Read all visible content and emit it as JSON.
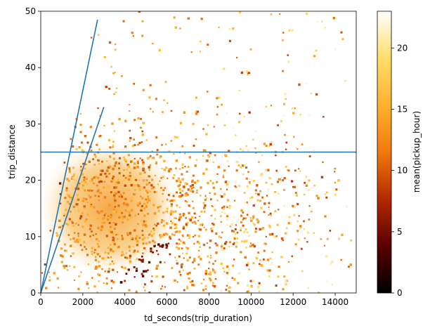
{
  "chart_data": {
    "type": "heatmap",
    "xlabel": "td_seconds(trip_duration)",
    "ylabel": "trip_distance",
    "xlim": [
      0,
      15000
    ],
    "ylim": [
      0,
      50
    ],
    "x_ticks": [
      0,
      2000,
      4000,
      6000,
      8000,
      10000,
      12000,
      14000
    ],
    "y_ticks": [
      0,
      10,
      20,
      30,
      40,
      50
    ],
    "grid": false,
    "colorbar": {
      "label": "mean(pickup_hour)",
      "range": [
        0,
        23
      ],
      "ticks": [
        0,
        5,
        10,
        15,
        20
      ],
      "colormap": "afmhot",
      "colors": [
        "#000000",
        "#5a0000",
        "#b32a00",
        "#f07a0c",
        "#ffb12f",
        "#ffdd6a",
        "#ffffff"
      ]
    },
    "density_regions": [
      {
        "description_key": "steep_edge",
        "from": [
          0,
          0
        ],
        "to": [
          2600,
          48
        ],
        "level": 8
      },
      {
        "description_key": "main_cloud",
        "from": [
          300,
          0
        ],
        "to": [
          8000,
          25
        ],
        "level": 14
      },
      {
        "description_key": "lower_band",
        "from": [
          3500,
          0
        ],
        "to": [
          6500,
          10
        ],
        "level": 6
      }
    ],
    "lines": [
      {
        "name": "",
        "x": [
          0,
          2700
        ],
        "y": [
          0,
          48.5
        ],
        "color": "#1f77b4"
      },
      {
        "name": "",
        "x": [
          0,
          3000
        ],
        "y": [
          0,
          33
        ],
        "color": "#1f77b4"
      },
      {
        "name": "",
        "x": [
          0,
          15000
        ],
        "y": [
          25,
          25
        ],
        "color": "#1f77b4"
      }
    ]
  }
}
